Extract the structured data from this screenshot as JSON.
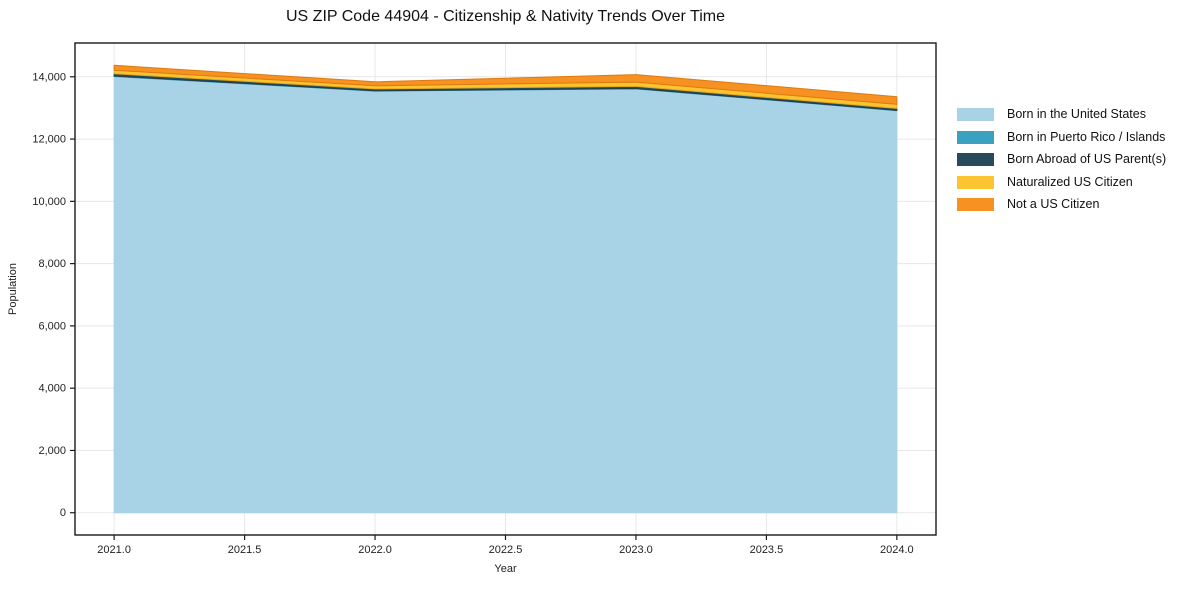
{
  "title": "US ZIP Code 44904 - Citizenship & Nativity Trends Over Time",
  "xlabel": "Year",
  "ylabel": "Population",
  "colors": {
    "background": "#ffffff",
    "plot_background": "#ffffff",
    "grid": "#e7e7e7",
    "spine": "#1a1a1a",
    "tick_text": "#222222"
  },
  "chart_data": {
    "type": "area",
    "stacked": true,
    "title": "US ZIP Code 44904 - Citizenship & Nativity Trends Over Time",
    "xlabel": "Year",
    "ylabel": "Population",
    "x": [
      2021,
      2022,
      2023,
      2024
    ],
    "series": [
      {
        "name": "Born in the United States",
        "values": [
          14010,
          13540,
          13610,
          12910
        ],
        "color": "#a8d3e6",
        "edge": "#a8d3e6"
      },
      {
        "name": "Born in Puerto Rico / Islands",
        "values": [
          15,
          10,
          15,
          15
        ],
        "color": "#3aa2c0",
        "edge": "#2e8ca8"
      },
      {
        "name": "Born Abroad of US Parent(s)",
        "values": [
          75,
          60,
          65,
          60
        ],
        "color": "#274b5c",
        "edge": "#1e3c4b"
      },
      {
        "name": "Naturalized US Citizen",
        "values": [
          110,
          100,
          140,
          130
        ],
        "color": "#fdc431",
        "edge": "#e2a91d"
      },
      {
        "name": "Not a US Citizen",
        "values": [
          160,
          130,
          240,
          245
        ],
        "color": "#f79122",
        "edge": "#dd7b0f"
      }
    ],
    "xlim": [
      2020.85,
      2024.15
    ],
    "ylim": [
      -715,
      15085
    ],
    "xticks": [
      {
        "v": 2021.0,
        "label": "2021.0"
      },
      {
        "v": 2021.5,
        "label": "2021.5"
      },
      {
        "v": 2022.0,
        "label": "2022.0"
      },
      {
        "v": 2022.5,
        "label": "2022.5"
      },
      {
        "v": 2023.0,
        "label": "2023.0"
      },
      {
        "v": 2023.5,
        "label": "2023.5"
      },
      {
        "v": 2024.0,
        "label": "2024.0"
      }
    ],
    "yticks": [
      {
        "v": 0,
        "label": "0"
      },
      {
        "v": 2000,
        "label": "2,000"
      },
      {
        "v": 4000,
        "label": "4,000"
      },
      {
        "v": 6000,
        "label": "6,000"
      },
      {
        "v": 8000,
        "label": "8,000"
      },
      {
        "v": 10000,
        "label": "10,000"
      },
      {
        "v": 12000,
        "label": "12,000"
      },
      {
        "v": 14000,
        "label": "14,000"
      }
    ],
    "grid": true,
    "legend_position": "right-outside"
  }
}
